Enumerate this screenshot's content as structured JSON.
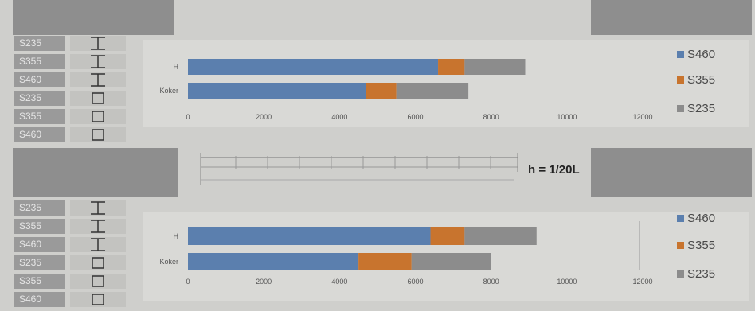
{
  "steel_labels_top": [
    "S235",
    "S355",
    "S460",
    "S235",
    "S355",
    "S460"
  ],
  "steel_labels_bottom": [
    "S235",
    "S355",
    "S460",
    "S235",
    "S355",
    "S460"
  ],
  "shape_icons_top": [
    "i-beam-icon",
    "i-beam-icon",
    "i-beam-icon",
    "box-section-icon",
    "box-section-icon",
    "box-section-icon"
  ],
  "shape_icons_bottom": [
    "i-beam-icon",
    "i-beam-icon",
    "i-beam-icon",
    "box-section-icon",
    "box-section-icon",
    "box-section-icon"
  ],
  "formula": "h = 1/20L",
  "colors": {
    "S460": "#5b7fae",
    "S355": "#c8742e",
    "S235": "#8c8c8c"
  },
  "chart_data": [
    {
      "type": "bar",
      "orientation": "horizontal",
      "stacked": true,
      "categories": [
        "H",
        "Koker"
      ],
      "series": [
        {
          "name": "S460",
          "values": [
            6600,
            4700
          ]
        },
        {
          "name": "S355",
          "values": [
            700,
            800
          ]
        },
        {
          "name": "S235",
          "values": [
            1600,
            1900
          ]
        }
      ],
      "xticks": [
        "0",
        "2000",
        "4000",
        "6000",
        "8000",
        "10000",
        "12000"
      ],
      "xlim": [
        0,
        12000
      ],
      "legend": "right"
    },
    {
      "type": "bar",
      "orientation": "horizontal",
      "stacked": true,
      "categories": [
        "H",
        "Koker"
      ],
      "series": [
        {
          "name": "S460",
          "values": [
            6400,
            4500
          ]
        },
        {
          "name": "S355",
          "values": [
            900,
            1400
          ]
        },
        {
          "name": "S235",
          "values": [
            1900,
            2100
          ]
        }
      ],
      "xticks": [
        "0",
        "2000",
        "4000",
        "6000",
        "8000",
        "10000",
        "12000"
      ],
      "xlim": [
        0,
        12000
      ],
      "legend": "right"
    }
  ]
}
